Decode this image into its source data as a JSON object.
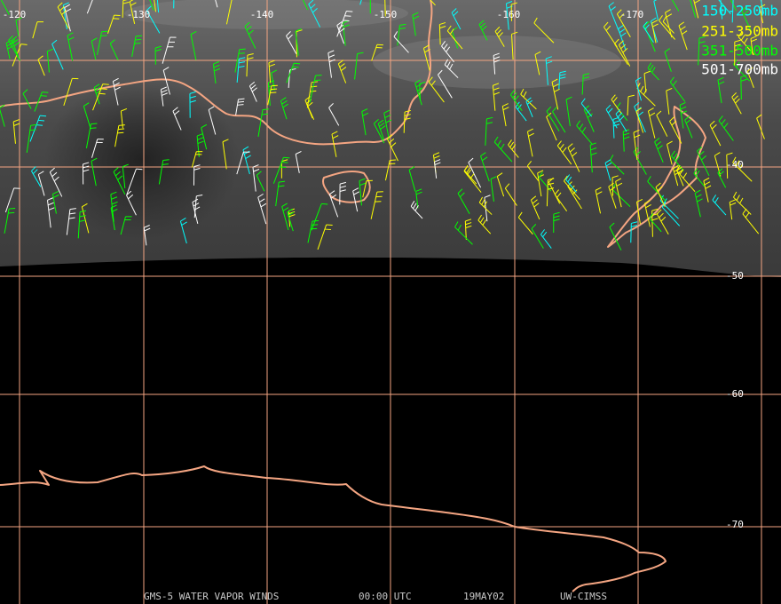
{
  "map": {
    "longitude_labels": [
      "-120",
      "-130",
      "-140",
      "-150",
      "-160",
      "-170"
    ],
    "latitude_labels": [
      "-40",
      "-50",
      "-60",
      "-70"
    ],
    "legend": [
      {
        "label": "150-250mb",
        "color": "#00ffff"
      },
      {
        "label": "251-350mb",
        "color": "#ffff00"
      },
      {
        "label": "351-500mb",
        "color": "#00ff00"
      },
      {
        "label": "501-700mb",
        "color": "#ffffff"
      }
    ],
    "footer": {
      "product": "GMS-5 WATER VAPOR WINDS",
      "time": "00:00 UTC",
      "date": "19MAY02",
      "source": "UW-CIMSS"
    }
  }
}
